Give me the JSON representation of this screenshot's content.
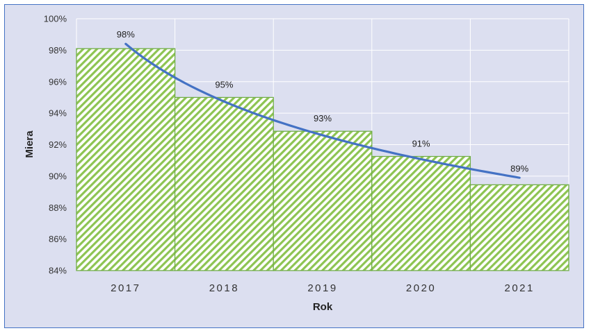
{
  "chart_data": {
    "type": "bar",
    "categories": [
      "2017",
      "2018",
      "2019",
      "2020",
      "2021"
    ],
    "values": [
      98.1,
      95.0,
      92.85,
      91.25,
      89.45
    ],
    "data_labels": [
      "98%",
      "95%",
      "93%",
      "91%",
      "89%"
    ],
    "trendline": {
      "type": "logarithmic",
      "start": 98.4,
      "end": 89.9
    },
    "xlabel": "Rok",
    "ylabel": "Miera",
    "ylim": [
      84,
      100
    ],
    "yticks": [
      84,
      86,
      88,
      90,
      92,
      94,
      96,
      98,
      100
    ],
    "ytick_labels": [
      "84%",
      "86%",
      "88%",
      "90%",
      "92%",
      "94%",
      "96%",
      "98%",
      "100%"
    ],
    "grid": true,
    "legend": "none",
    "colors": {
      "bar_stroke": "#70ad47",
      "bar_hatch": "#8dc452",
      "trendline": "#4472c4",
      "plot_background": "#dcdff0",
      "frame_border": "#4472c4",
      "gridline": "#ffffff"
    }
  }
}
